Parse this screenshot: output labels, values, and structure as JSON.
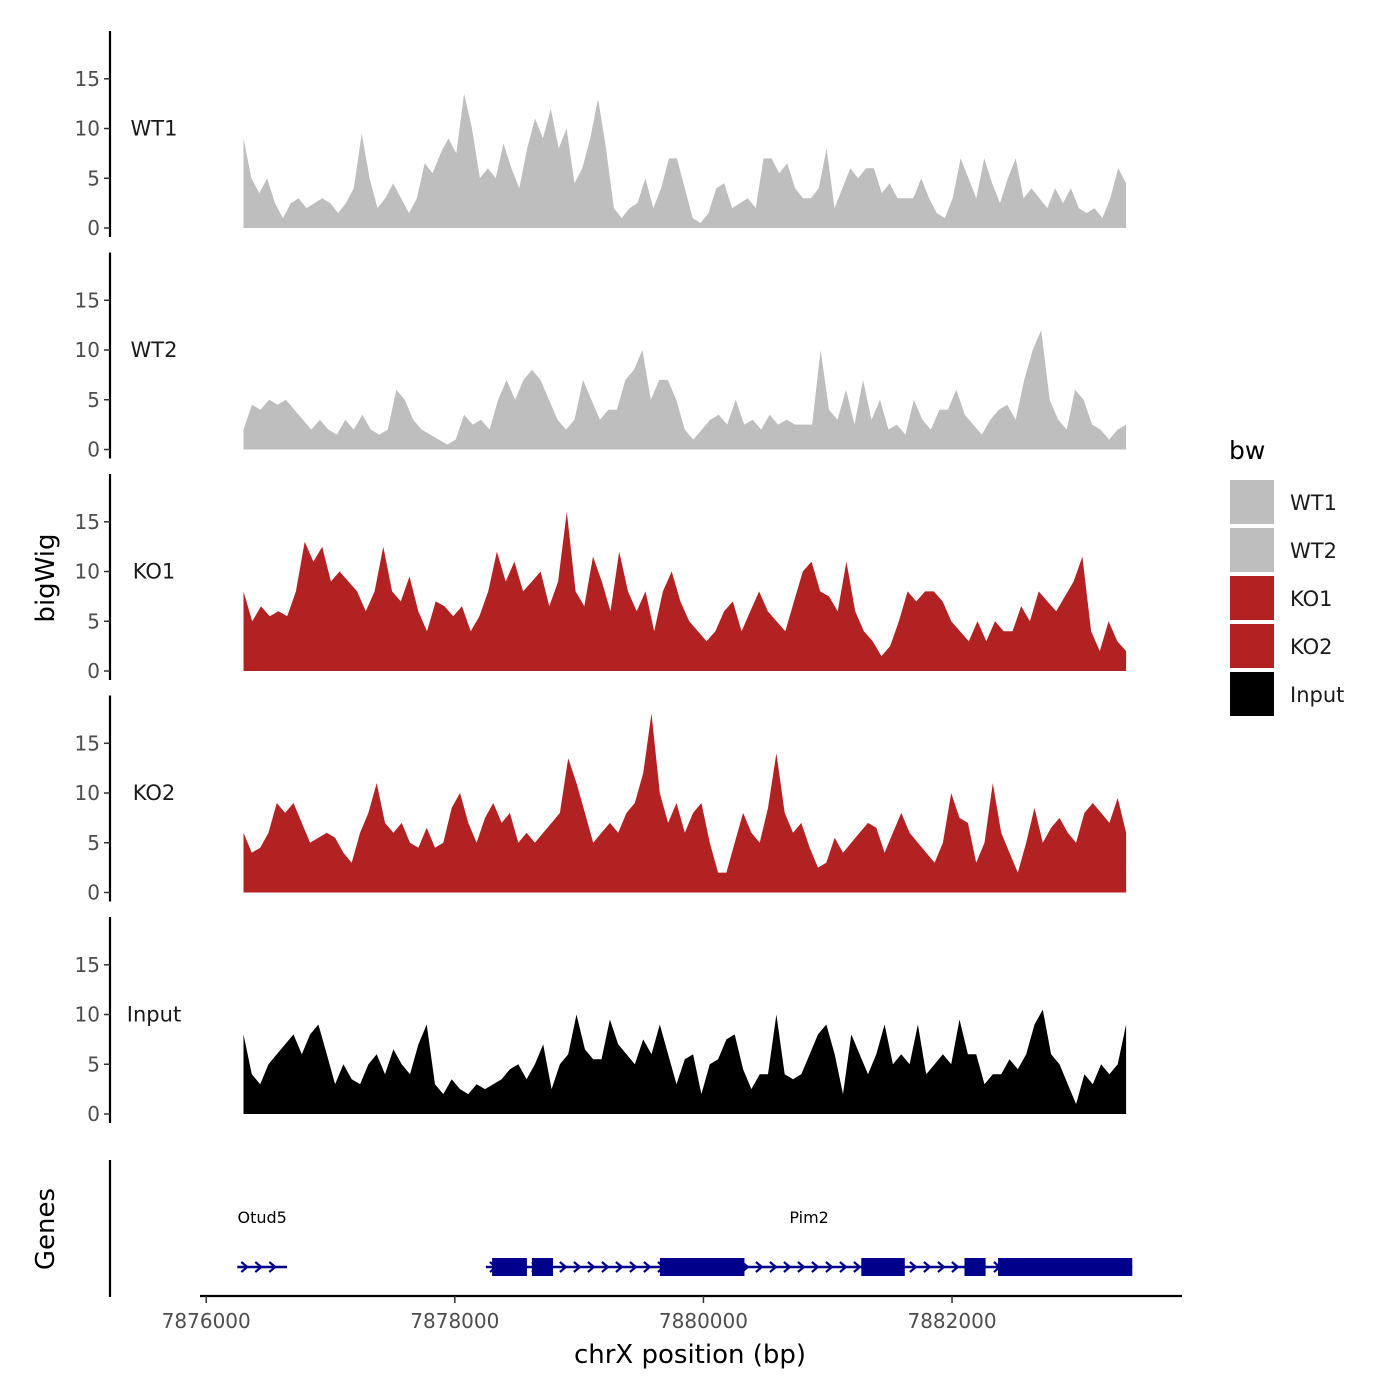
{
  "chart_data": {
    "type": "area",
    "ylabel": "bigWig",
    "xlabel": "chrX position (bp)",
    "ylim": [
      0,
      19
    ],
    "yticks": [
      0,
      5,
      10,
      15
    ],
    "xlim": [
      7875950,
      7883850
    ],
    "xticks": [
      7876000,
      7878000,
      7880000,
      7882000
    ],
    "xtick_labels": [
      "7876000",
      "7878000",
      "7880000",
      "7882000"
    ],
    "data_range": [
      7876300,
      7883400
    ],
    "series": [
      {
        "name": "WT1",
        "color": "#bebebe",
        "values": [
          9,
          5,
          3.5,
          5,
          2.5,
          1,
          2.5,
          3,
          2,
          2.5,
          3,
          2.5,
          1.5,
          2.5,
          4,
          9.5,
          5,
          2,
          3,
          4.5,
          3,
          1.5,
          3,
          6.5,
          5.5,
          7.5,
          9,
          7.5,
          13.5,
          10,
          5,
          6,
          5,
          8.5,
          6,
          4,
          8,
          11,
          9,
          12,
          8,
          10,
          4.5,
          6,
          9,
          13,
          8,
          2,
          1,
          2,
          2.5,
          5,
          2,
          4,
          7,
          7,
          4,
          1,
          0.5,
          1.5,
          4,
          4.5,
          2,
          2.5,
          3,
          2,
          7,
          7,
          5.5,
          6.5,
          4,
          3,
          3,
          4,
          8,
          2,
          4,
          6,
          5,
          6,
          6,
          3.5,
          4.5,
          3,
          3,
          3,
          5,
          3,
          1.5,
          1,
          3,
          7,
          5,
          3,
          7,
          4.5,
          2.5,
          5,
          7,
          3,
          4,
          3,
          2,
          4,
          2.5,
          4,
          2,
          1.5,
          2,
          1,
          3,
          6,
          4.5
        ]
      },
      {
        "name": "WT2",
        "color": "#bebebe",
        "values": [
          2,
          4.5,
          4,
          5,
          4.5,
          5,
          4,
          3,
          2,
          3,
          2,
          1.5,
          3,
          2,
          3.5,
          2,
          1.5,
          2,
          6,
          5,
          3,
          2,
          1.5,
          1,
          0.5,
          1,
          3.5,
          2.5,
          3,
          2,
          5,
          7,
          5,
          7,
          8,
          7,
          5,
          3,
          2,
          3,
          7,
          5,
          3,
          4,
          4,
          7,
          8,
          10,
          5,
          7,
          7,
          5,
          2,
          1,
          2,
          3,
          3.5,
          2.5,
          5,
          2.5,
          3,
          2,
          3.5,
          2.5,
          3,
          2.5,
          2.5,
          2.5,
          10,
          4,
          3,
          6,
          2.5,
          7,
          3,
          5,
          2,
          2.5,
          1.5,
          5,
          3,
          2,
          4,
          4,
          6,
          3.5,
          2.5,
          1.5,
          3,
          4,
          4.5,
          3,
          7,
          10,
          12,
          5,
          3,
          2,
          6,
          5,
          2.5,
          2,
          1,
          2,
          2.5
        ]
      },
      {
        "name": "KO1",
        "color": "#b22222",
        "values": [
          8,
          5,
          6.5,
          5.5,
          6,
          5.5,
          8,
          13,
          11,
          12.5,
          9,
          10,
          9,
          8,
          6,
          8,
          12.5,
          8,
          7,
          9.5,
          6,
          4,
          7,
          6.5,
          5.5,
          6.5,
          4,
          5.5,
          8,
          12,
          9,
          11,
          8,
          9,
          10,
          6.5,
          9,
          16,
          8,
          6.5,
          11.5,
          9,
          6,
          12,
          8,
          6,
          8,
          4,
          8,
          10,
          7,
          5,
          4,
          3,
          4,
          6,
          7,
          4,
          6,
          8,
          6,
          5,
          4,
          7,
          10,
          11,
          8,
          7.5,
          6,
          11,
          6,
          4,
          3,
          1.5,
          2.5,
          5,
          8,
          7,
          8,
          8,
          7,
          5,
          4,
          3,
          5,
          3,
          5,
          4,
          4,
          6.5,
          5,
          8,
          7,
          6,
          7.5,
          9,
          11.5,
          4,
          2,
          5,
          3,
          2
        ]
      },
      {
        "name": "KO2",
        "color": "#b22222",
        "values": [
          6,
          4,
          4.5,
          6,
          9,
          8,
          9,
          7,
          5,
          5.5,
          6,
          5.5,
          4,
          3,
          6,
          8,
          11,
          7,
          6,
          7,
          5,
          4.5,
          6.5,
          4.5,
          5,
          8.5,
          10,
          7,
          5,
          7.5,
          9,
          7,
          8,
          5,
          6,
          5,
          6,
          7,
          8,
          13.5,
          11,
          8,
          5,
          6,
          7,
          6,
          8,
          9,
          12,
          18,
          10,
          7,
          9,
          6,
          8,
          9,
          5,
          2,
          2,
          5,
          8,
          6,
          5,
          8.5,
          14,
          8,
          6,
          7,
          4.5,
          2.5,
          3,
          5.5,
          4,
          5,
          6,
          7,
          6.5,
          4,
          6,
          8,
          6,
          5,
          4,
          3,
          5,
          10,
          7.5,
          7,
          3,
          5,
          11,
          6,
          4,
          2,
          5,
          8.5,
          5,
          6.5,
          7.5,
          6,
          5,
          8,
          9,
          8,
          7,
          9.5,
          6
        ]
      },
      {
        "name": "Input",
        "color": "#000000",
        "values": [
          8,
          4,
          3,
          5,
          6,
          7,
          8,
          6,
          8,
          9,
          6,
          3,
          5,
          3.5,
          3,
          5,
          6,
          4,
          6.5,
          5,
          4,
          7,
          9,
          3,
          2,
          3.5,
          2.5,
          2,
          3,
          2.5,
          3,
          3.5,
          4.5,
          5,
          3.5,
          5,
          7,
          2.5,
          5,
          6,
          10,
          6.5,
          5.5,
          5.5,
          9.5,
          7,
          6,
          5,
          7.5,
          6,
          9,
          6,
          3,
          5.5,
          6,
          2,
          5,
          5.5,
          7.5,
          8,
          4.5,
          2.5,
          4,
          4,
          10,
          4,
          3.5,
          4,
          6,
          8,
          9,
          6,
          2,
          8,
          6,
          4,
          6,
          9,
          5,
          6,
          5,
          9,
          4,
          5,
          6,
          5,
          9.5,
          6,
          6,
          3,
          4,
          4,
          5.5,
          4.5,
          6,
          9,
          10.5,
          6,
          5,
          3,
          1,
          4,
          3,
          5,
          4,
          5,
          9
        ]
      }
    ],
    "legend": {
      "title": "bw",
      "entries": [
        "WT1",
        "WT2",
        "KO1",
        "KO2",
        "Input"
      ],
      "position": "right"
    },
    "genes_panel": {
      "label": "Genes",
      "genes": [
        {
          "name": "Otud5",
          "start": 7876250,
          "end": 7876650,
          "strand": "+",
          "exons": []
        },
        {
          "name": "Pim2",
          "start": 7878250,
          "end": 7883450,
          "strand": "+",
          "exons": [
            [
              7878300,
              7878580
            ],
            [
              7878620,
              7878790
            ],
            [
              7879650,
              7880330
            ],
            [
              7881270,
              7881620
            ],
            [
              7882100,
              7882270
            ],
            [
              7882370,
              7883450
            ]
          ]
        }
      ]
    }
  }
}
